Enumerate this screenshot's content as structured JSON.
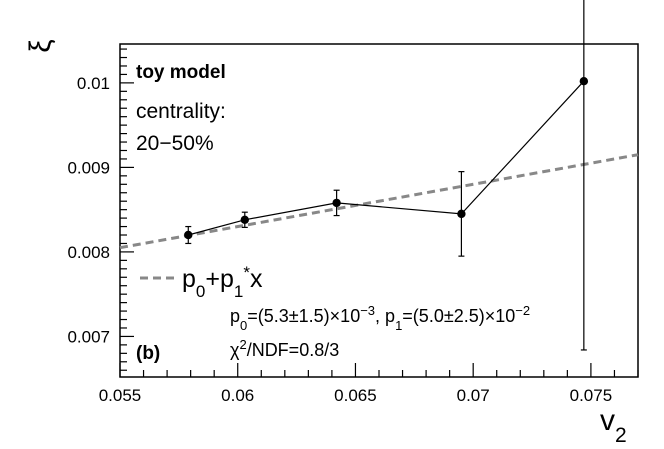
{
  "chart_data": {
    "type": "scatter",
    "xlabel": "v",
    "xlabel_sub": "2",
    "ylabel": "ξ",
    "xlim": [
      0.055,
      0.077
    ],
    "ylim": [
      0.00652,
      0.01046
    ],
    "x_ticks": [
      {
        "value": 0.055,
        "label": "0.055"
      },
      {
        "value": 0.06,
        "label": "0.06"
      },
      {
        "value": 0.065,
        "label": "0.065"
      },
      {
        "value": 0.07,
        "label": "0.07"
      },
      {
        "value": 0.075,
        "label": "0.075"
      }
    ],
    "y_ticks": [
      {
        "value": 0.007,
        "label": "0.007"
      },
      {
        "value": 0.008,
        "label": "0.008"
      },
      {
        "value": 0.009,
        "label": "0.009"
      },
      {
        "value": 0.01,
        "label": "0.01"
      }
    ],
    "series": [
      {
        "style": "points-with-errorbars-and-line",
        "color": "#000000",
        "x": [
          0.0579,
          0.0603,
          0.0642,
          0.0695,
          0.0747
        ],
        "y": [
          0.0082,
          0.00838,
          0.00858,
          0.00845,
          0.01002
        ],
        "err": [
          0.0001,
          9e-05,
          0.00015,
          0.0005,
          0.00318
        ]
      },
      {
        "style": "dashed-fit-line",
        "color": "#888888",
        "intercept": 0.0053,
        "slope": 0.05,
        "x_range": [
          0.055,
          0.077
        ]
      }
    ],
    "annotations": {
      "model": "toy model",
      "centrality_label": "centrality:",
      "centrality_value": "20−50%",
      "panel": "(b)",
      "legend_label": "p0+p1*x",
      "fit_params": "p0=(5.3±1.5)×10−3, p1=(5.0±2.5)×10−2",
      "chi2": "χ2/NDF=0.8/3"
    },
    "legend_placement": "lower-left",
    "grid": false
  }
}
